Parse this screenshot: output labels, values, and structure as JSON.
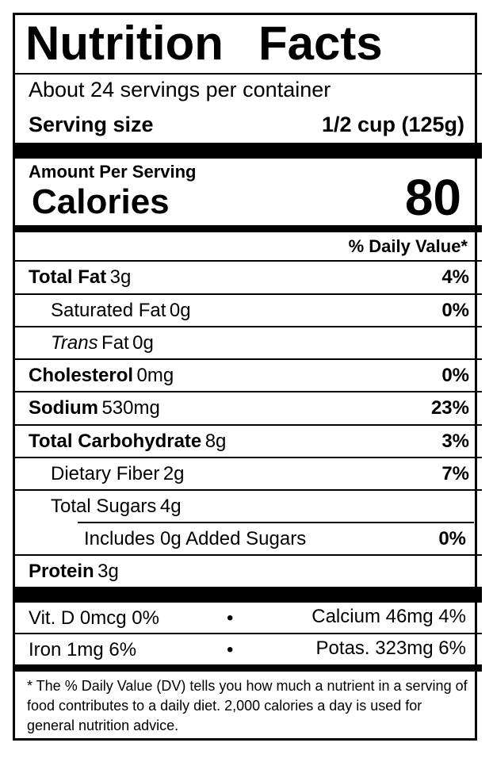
{
  "title_word1": "Nutrition",
  "title_word2": "Facts",
  "servings_per_container": "About 24 servings per container",
  "serving_size_label": "Serving size",
  "serving_size_value": "1/2 cup (125g)",
  "amount_per_serving": "Amount Per Serving",
  "calories_label": "Calories",
  "calories_value": "80",
  "daily_value_header": "% Daily Value*",
  "nutrients": {
    "total_fat": {
      "label": "Total Fat",
      "amount": "3g",
      "dv": "4%"
    },
    "saturated_fat": {
      "label": "Saturated Fat",
      "amount": "0g",
      "dv": "0%"
    },
    "trans_fat": {
      "label_italic": "Trans",
      "label": "Fat",
      "amount": "0g"
    },
    "cholesterol": {
      "label": "Cholesterol",
      "amount": "0mg",
      "dv": "0%"
    },
    "sodium": {
      "label": "Sodium",
      "amount": "530mg",
      "dv": "23%"
    },
    "total_carbohydrate": {
      "label": "Total Carbohydrate",
      "amount": "8g",
      "dv": "3%"
    },
    "dietary_fiber": {
      "label": "Dietary Fiber",
      "amount": "2g",
      "dv": "7%"
    },
    "total_sugars": {
      "label": "Total Sugars",
      "amount": "4g"
    },
    "added_sugars": {
      "label": "Includes 0g Added Sugars",
      "dv": "0%"
    },
    "protein": {
      "label": "Protein",
      "amount": "3g"
    }
  },
  "vitamins": {
    "vit_d": "Vit. D 0mcg 0%",
    "calcium": "Calcium 46mg 4%",
    "iron": "Iron 1mg 6%",
    "potassium": "Potas. 323mg 6%",
    "bullet": "•"
  },
  "footnote": "* The % Daily Value (DV) tells you how much a nutrient in a serving of food contributes to a daily diet. 2,000 calories a day is used for general nutrition advice."
}
